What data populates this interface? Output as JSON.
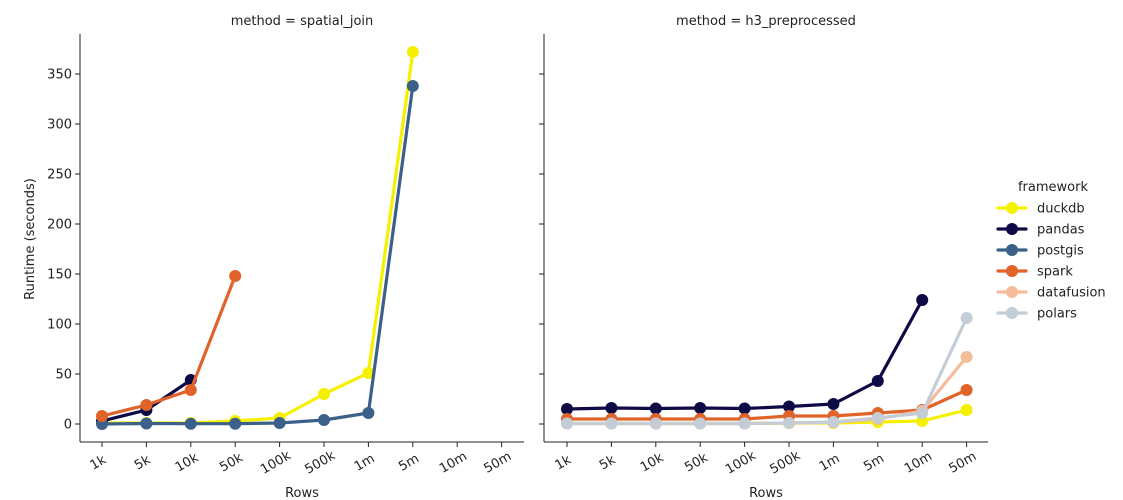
{
  "chart_data": {
    "type": "line",
    "ylabel": "Runtime (seconds)",
    "xlabel": "Rows",
    "categories": [
      "1k",
      "5k",
      "10k",
      "50k",
      "100k",
      "500k",
      "1m",
      "5m",
      "10m",
      "50m"
    ],
    "ylim": [
      -18,
      390
    ],
    "yticks": [
      0,
      50,
      100,
      150,
      200,
      250,
      300,
      350
    ],
    "legend": {
      "title": "framework",
      "placement": "right"
    },
    "panels": [
      {
        "title": "method = spatial_join",
        "series": [
          {
            "name": "duckdb",
            "color": "#f5f000",
            "values": [
              1,
              1,
              1,
              3,
              6,
              30,
              51,
              372,
              null,
              null
            ]
          },
          {
            "name": "pandas",
            "color": "#0d0a45",
            "values": [
              3,
              14,
              44,
              null,
              null,
              null,
              null,
              null,
              null,
              null
            ]
          },
          {
            "name": "postgis",
            "color": "#3b6089",
            "values": [
              0,
              0.5,
              0.3,
              0.3,
              1,
              4,
              11,
              338,
              null,
              null
            ]
          },
          {
            "name": "spark",
            "color": "#e0632a",
            "values": [
              8,
              19,
              34,
              148,
              null,
              null,
              null,
              null,
              null,
              null
            ]
          },
          {
            "name": "datafusion",
            "color": "#f5bc9b",
            "values": [
              null,
              null,
              null,
              null,
              null,
              null,
              null,
              null,
              null,
              null
            ]
          },
          {
            "name": "polars",
            "color": "#c4ccd6",
            "values": [
              null,
              null,
              null,
              null,
              null,
              null,
              null,
              null,
              null,
              null
            ]
          }
        ]
      },
      {
        "title": "method = h3_preprocessed",
        "series": [
          {
            "name": "duckdb",
            "color": "#f5f000",
            "values": [
              0.5,
              0.5,
              0.5,
              0.5,
              0.5,
              0.8,
              1,
              2,
              3,
              14
            ]
          },
          {
            "name": "pandas",
            "color": "#0d0a45",
            "values": [
              15,
              16,
              15.5,
              16,
              15.5,
              17.5,
              20,
              43,
              124,
              null
            ]
          },
          {
            "name": "postgis",
            "color": "#3b6089",
            "values": [
              null,
              null,
              null,
              null,
              null,
              null,
              null,
              null,
              null,
              null
            ]
          },
          {
            "name": "spark",
            "color": "#e0632a",
            "values": [
              5,
              5,
              5,
              5,
              5,
              8,
              8,
              11,
              14,
              34
            ]
          },
          {
            "name": "datafusion",
            "color": "#f5bc9b",
            "values": [
              0.5,
              0.5,
              0.5,
              0.5,
              0.5,
              1,
              1.5,
              5,
              13,
              67
            ]
          },
          {
            "name": "polars",
            "color": "#c4ccd6",
            "values": [
              0.5,
              0.5,
              0.5,
              0.5,
              0.5,
              1,
              2,
              6,
              11,
              106
            ]
          }
        ]
      }
    ]
  }
}
